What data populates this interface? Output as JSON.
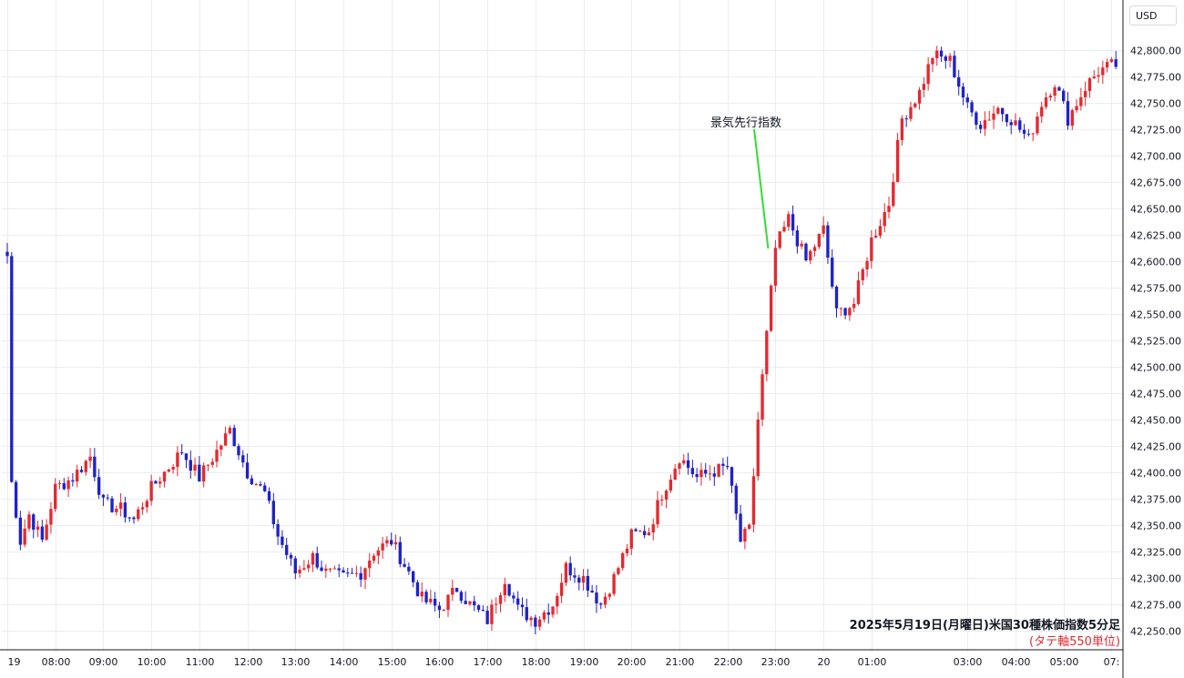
{
  "currency_label": "USD",
  "caption_title": "2025年5月19日(月曜日)米国30種株価指数5分足",
  "caption_sub": "(タテ軸550単位)",
  "annotation_label": "景気先行指数",
  "colors": {
    "up": "#e4292f",
    "down": "#1e22c8",
    "grid": "#e9edf2",
    "annotation_line": "#33dd33"
  },
  "chart_data": {
    "type": "candlestick",
    "title": "2025年5月19日(月曜日)米国30種株価指数5分足",
    "ylabel": "USD",
    "ylim": [
      42235,
      42815
    ],
    "y_ticks": [
      42250,
      42275,
      42300,
      42325,
      42350,
      42375,
      42400,
      42425,
      42450,
      42475,
      42500,
      42525,
      42550,
      42575,
      42600,
      42625,
      42650,
      42675,
      42700,
      42725,
      42750,
      42775,
      42800
    ],
    "y_tick_labels": [
      "42,250.00",
      "42,275.00",
      "42,300.00",
      "42,325.00",
      "42,350.00",
      "42,375.00",
      "42,400.00",
      "42,425.00",
      "42,450.00",
      "42,475.00",
      "42,500.00",
      "42,525.00",
      "42,550.00",
      "42,575.00",
      "42,600.00",
      "42,625.00",
      "42,650.00",
      "42,675.00",
      "42,700.00",
      "42,725.00",
      "42,750.00",
      "42,775.00",
      "42,800.00"
    ],
    "x_tick_labels": [
      "19",
      "08:00",
      "09:00",
      "10:00",
      "11:00",
      "12:00",
      "13:00",
      "14:00",
      "15:00",
      "16:00",
      "17:00",
      "18:00",
      "19:00",
      "20:00",
      "21:00",
      "22:00",
      "23:00",
      "20",
      "01:00",
      "03:00",
      "04:00",
      "05:00",
      "07:"
    ],
    "x_tick_slots": [
      0,
      11,
      22,
      33,
      44,
      55,
      66,
      77,
      88,
      99,
      110,
      121,
      132,
      143,
      154,
      165,
      176,
      187,
      198,
      220,
      231,
      242,
      253
    ],
    "total_slots": 255,
    "grid": true,
    "annotation": {
      "label": "景気先行指数",
      "slot": 176,
      "value": 42612
    },
    "anchors": [
      [
        0,
        42605
      ],
      [
        1,
        42390
      ],
      [
        3,
        42335
      ],
      [
        5,
        42360
      ],
      [
        8,
        42335
      ],
      [
        11,
        42385
      ],
      [
        15,
        42395
      ],
      [
        19,
        42415
      ],
      [
        22,
        42370
      ],
      [
        26,
        42365
      ],
      [
        29,
        42355
      ],
      [
        33,
        42385
      ],
      [
        37,
        42405
      ],
      [
        40,
        42420
      ],
      [
        44,
        42395
      ],
      [
        48,
        42420
      ],
      [
        51,
        42440
      ],
      [
        55,
        42400
      ],
      [
        59,
        42380
      ],
      [
        62,
        42340
      ],
      [
        66,
        42305
      ],
      [
        70,
        42320
      ],
      [
        73,
        42305
      ],
      [
        77,
        42300
      ],
      [
        81,
        42305
      ],
      [
        84,
        42325
      ],
      [
        88,
        42335
      ],
      [
        92,
        42305
      ],
      [
        95,
        42280
      ],
      [
        99,
        42270
      ],
      [
        103,
        42290
      ],
      [
        106,
        42275
      ],
      [
        110,
        42260
      ],
      [
        114,
        42300
      ],
      [
        117,
        42270
      ],
      [
        121,
        42260
      ],
      [
        125,
        42275
      ],
      [
        128,
        42310
      ],
      [
        132,
        42300
      ],
      [
        136,
        42275
      ],
      [
        139,
        42300
      ],
      [
        143,
        42340
      ],
      [
        147,
        42345
      ],
      [
        150,
        42380
      ],
      [
        154,
        42415
      ],
      [
        158,
        42395
      ],
      [
        161,
        42400
      ],
      [
        165,
        42405
      ],
      [
        168,
        42335
      ],
      [
        170,
        42345
      ],
      [
        172,
        42450
      ],
      [
        174,
        42530
      ],
      [
        176,
        42612
      ],
      [
        179,
        42640
      ],
      [
        183,
        42600
      ],
      [
        187,
        42630
      ],
      [
        190,
        42550
      ],
      [
        194,
        42560
      ],
      [
        198,
        42620
      ],
      [
        202,
        42655
      ],
      [
        205,
        42735
      ],
      [
        209,
        42760
      ],
      [
        212,
        42795
      ],
      [
        216,
        42790
      ],
      [
        220,
        42745
      ],
      [
        223,
        42730
      ],
      [
        227,
        42745
      ],
      [
        230,
        42735
      ],
      [
        234,
        42715
      ],
      [
        237,
        42750
      ],
      [
        240,
        42770
      ],
      [
        243,
        42735
      ],
      [
        247,
        42765
      ],
      [
        250,
        42780
      ],
      [
        253,
        42785
      ]
    ]
  }
}
